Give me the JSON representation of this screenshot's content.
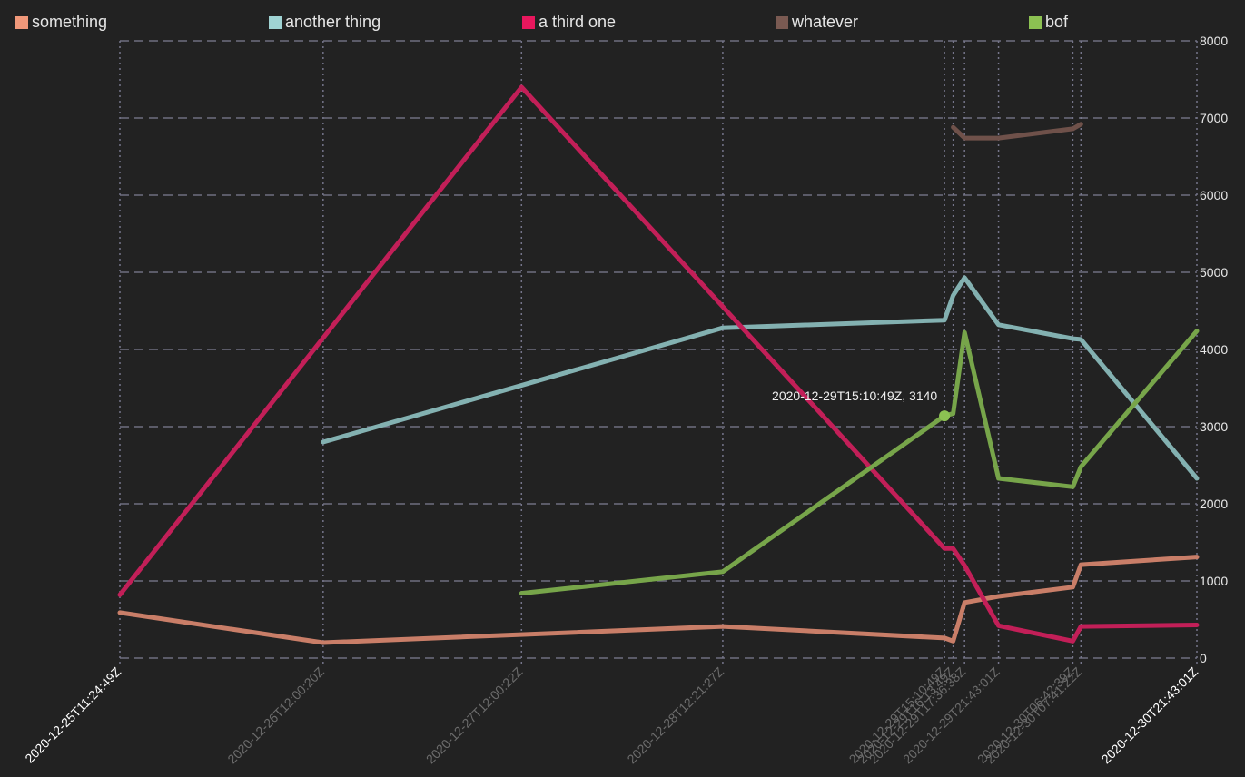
{
  "chart_data": {
    "type": "line",
    "ylim": [
      0,
      8000
    ],
    "y_ticks": [
      0,
      1000,
      2000,
      3000,
      4000,
      5000,
      6000,
      7000,
      8000
    ],
    "x_ticks": [
      {
        "label": "2020-12-25T11:24:49Z",
        "date": "2020-12-25T11:24:49Z",
        "highlight": true
      },
      {
        "label": "2020-12-26T12:00:20Z",
        "date": "2020-12-26T12:00:20Z",
        "highlight": false
      },
      {
        "label": "2020-12-27T12:00:22Z",
        "date": "2020-12-27T12:00:22Z",
        "highlight": false
      },
      {
        "label": "2020-12-28T12:21:27Z",
        "date": "2020-12-28T12:21:27Z",
        "highlight": false
      },
      {
        "label": "2020-12-29T15:10:49Z",
        "date": "2020-12-29T15:10:49Z",
        "highlight": false
      },
      {
        "label": "2020-12-29T16:13:49Z",
        "date": "2020-12-29T16:13:49Z",
        "highlight": false
      },
      {
        "label": "2020-12-29T17:36:38Z",
        "date": "2020-12-29T17:36:38Z",
        "highlight": false
      },
      {
        "label": "2020-12-29T21:43:01Z",
        "date": "2020-12-29T21:43:01Z",
        "highlight": false
      },
      {
        "label": "2020-12-30T06:42:39Z",
        "date": "2020-12-30T06:42:39Z",
        "highlight": false
      },
      {
        "label": "2020-12-30T07:41:22Z",
        "date": "2020-12-30T07:41:22Z",
        "highlight": false
      },
      {
        "label": "2020-12-30T21:43:01Z",
        "date": "2020-12-30T21:43:01Z",
        "highlight": true
      }
    ],
    "grid": true,
    "legend_position": "top",
    "series": [
      {
        "name": "something",
        "legend_color": "#f0987a",
        "line_color": "#c97e68",
        "points": [
          [
            "2020-12-25T11:24:49Z",
            590
          ],
          [
            "2020-12-26T12:00:20Z",
            200
          ],
          [
            "2020-12-28T12:21:27Z",
            410
          ],
          [
            "2020-12-29T15:10:49Z",
            260
          ],
          [
            "2020-12-29T16:13:49Z",
            220
          ],
          [
            "2020-12-29T17:36:38Z",
            720
          ],
          [
            "2020-12-29T21:43:01Z",
            800
          ],
          [
            "2020-12-30T06:42:39Z",
            920
          ],
          [
            "2020-12-30T07:41:22Z",
            1210
          ],
          [
            "2020-12-30T21:43:01Z",
            1310
          ]
        ]
      },
      {
        "name": "another thing",
        "legend_color": "#9fd3d3",
        "line_color": "#83b1b1",
        "points": [
          [
            "2020-12-26T12:00:20Z",
            2800
          ],
          [
            "2020-12-28T12:21:27Z",
            4280
          ],
          [
            "2020-12-29T15:10:49Z",
            4380
          ],
          [
            "2020-12-29T16:13:49Z",
            4700
          ],
          [
            "2020-12-29T17:36:38Z",
            4930
          ],
          [
            "2020-12-29T21:43:01Z",
            4320
          ],
          [
            "2020-12-30T06:42:39Z",
            4140
          ],
          [
            "2020-12-30T07:41:22Z",
            4130
          ],
          [
            "2020-12-30T21:43:01Z",
            2330
          ]
        ]
      },
      {
        "name": "a third one",
        "legend_color": "#e8175d",
        "line_color": "#c21f58",
        "points": [
          [
            "2020-12-25T11:24:49Z",
            820
          ],
          [
            "2020-12-27T12:00:22Z",
            7400
          ],
          [
            "2020-12-29T15:10:49Z",
            1420
          ],
          [
            "2020-12-29T16:13:49Z",
            1420
          ],
          [
            "2020-12-29T17:36:38Z",
            1200
          ],
          [
            "2020-12-29T21:43:01Z",
            420
          ],
          [
            "2020-12-30T06:42:39Z",
            220
          ],
          [
            "2020-12-30T07:41:22Z",
            410
          ],
          [
            "2020-12-30T21:43:01Z",
            430
          ]
        ]
      },
      {
        "name": "whatever",
        "legend_color": "#7a5a52",
        "line_color": "#6f514a",
        "points": [
          [
            "2020-12-29T16:13:49Z",
            6880
          ],
          [
            "2020-12-29T17:36:38Z",
            6740
          ],
          [
            "2020-12-29T21:43:01Z",
            6740
          ],
          [
            "2020-12-30T06:42:39Z",
            6860
          ],
          [
            "2020-12-30T07:41:22Z",
            6920
          ]
        ]
      },
      {
        "name": "bof",
        "legend_color": "#8cc152",
        "line_color": "#77a54a",
        "points": [
          [
            "2020-12-27T12:00:22Z",
            840
          ],
          [
            "2020-12-28T12:21:27Z",
            1120
          ],
          [
            "2020-12-29T15:10:49Z",
            3140
          ],
          [
            "2020-12-29T16:13:49Z",
            3170
          ],
          [
            "2020-12-29T17:36:38Z",
            4220
          ],
          [
            "2020-12-29T21:43:01Z",
            2330
          ],
          [
            "2020-12-30T06:42:39Z",
            2220
          ],
          [
            "2020-12-30T07:41:22Z",
            2480
          ],
          [
            "2020-12-30T21:43:01Z",
            4240
          ]
        ]
      }
    ],
    "annotation": {
      "series": "bof",
      "x": "2020-12-29T15:10:49Z",
      "y": 3140,
      "text": "2020-12-29T15:10:49Z, 3140"
    }
  }
}
